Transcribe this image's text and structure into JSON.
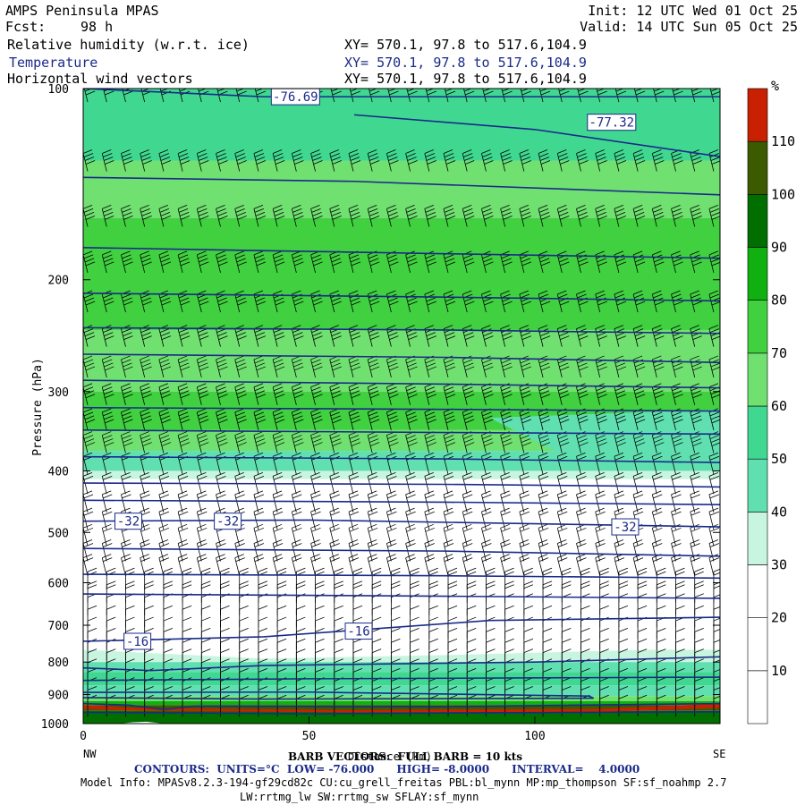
{
  "header": {
    "model_name": "AMPS Peninsula MPAS",
    "init": "Init: 12 UTC Wed 01 Oct 25",
    "fcst_label": "Fcst:",
    "fcst_value": "98 h",
    "valid": "Valid: 14 UTC Sun 05 Oct 25",
    "field_1": "Relative humidity (w.r.t. ice)",
    "field_2": "Temperature",
    "field_3": "Horizontal wind vectors",
    "xy_1": "XY= 570.1, 97.8 to 517.6,104.9",
    "xy_2": "XY= 570.1, 97.8 to 517.6,104.9",
    "xy_3": "XY= 570.1, 97.8 to 517.6,104.9"
  },
  "footer": {
    "barb_text": "BARB VECTORS:  FULL BARB = 10 kts",
    "xaxis_overlap": "Distance (km)",
    "contours_text": "CONTOURS:  UNITS=°C  LOW= -76.000      HIGH= -8.0000      INTERVAL=    4.0000",
    "model_info": "Model Info: MPASv8.2.3-194-gf29cd82c CU:cu_grell_freitas PBL:bl_mynn MP:mp_thompson SF:sf_noahmp 2.7",
    "model_info_2": "LW:rrtmg_lw SW:rrtmg_sw SFLAY:sf_mynn",
    "left_end": "NW",
    "right_end": "SE"
  },
  "colors": {
    "temperature_contour": "#1a2a8a",
    "colorbar": [
      "#ffffff",
      "#ffffff",
      "#ffffff",
      "#c8f5e0",
      "#60e0b0",
      "#40d890",
      "#70e070",
      "#40d040",
      "#10b010",
      "#006f00",
      "#3c5a00",
      "#c82000"
    ]
  },
  "chart_data": {
    "type": "heatmap",
    "subtype": "vertical cross-section",
    "ylabel": "Pressure (hPa)",
    "y_scale": "log",
    "ylim": [
      1000,
      100
    ],
    "y_ticks": [
      100,
      200,
      300,
      400,
      500,
      600,
      700,
      800,
      900,
      1000
    ],
    "xlim": [
      0,
      141
    ],
    "x_ticks": [
      0,
      50,
      100
    ],
    "colorbar": {
      "unit": "%",
      "levels": [
        10,
        20,
        30,
        40,
        50,
        60,
        70,
        80,
        90,
        100,
        110
      ],
      "placement": "right"
    },
    "rh_layers": [
      {
        "p_top": 100,
        "p_bottom": 400,
        "rh_level": 70
      },
      {
        "p_top": 770,
        "p_bottom": 920,
        "rh_level": 50
      },
      {
        "p_top": 920,
        "p_bottom": 1000,
        "rh_level": 100
      }
    ],
    "contour_labels": [
      {
        "text": "-76.69",
        "x": 47,
        "p": 103
      },
      {
        "text": "-77.32",
        "x": 117,
        "p": 113
      },
      {
        "text": "-32",
        "x": 10,
        "p": 480
      },
      {
        "text": "-32",
        "x": 32,
        "p": 480
      },
      {
        "text": "-32",
        "x": 120,
        "p": 490
      },
      {
        "text": "-16",
        "x": 12,
        "p": 742
      },
      {
        "text": "-16",
        "x": 61,
        "p": 715
      }
    ],
    "wind_barbs": "dense field, westerly at mid levels"
  }
}
